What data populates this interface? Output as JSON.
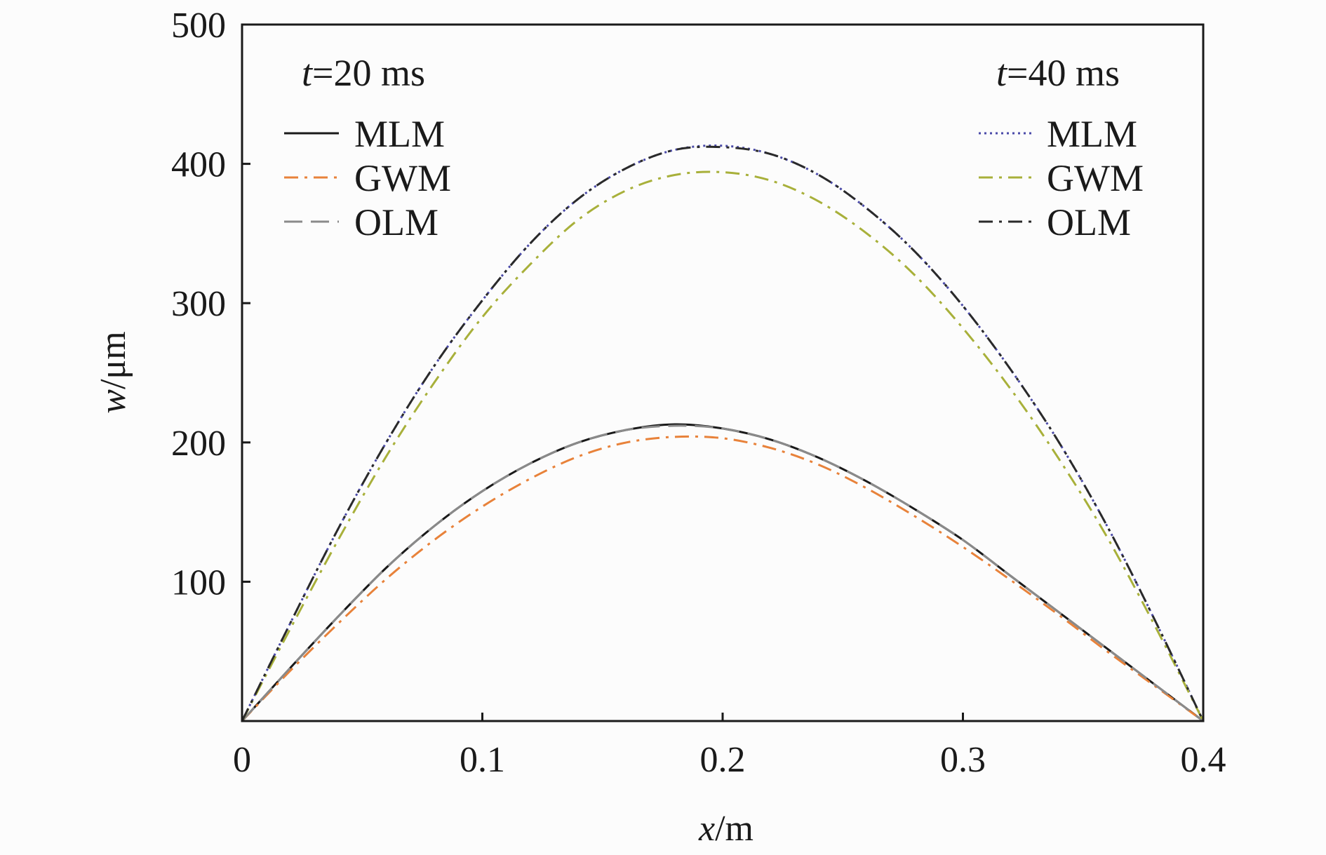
{
  "chart_data": {
    "type": "line",
    "xlabel": {
      "var": "x",
      "unit": "/m"
    },
    "ylabel": {
      "var": "w",
      "unit": "/μm"
    },
    "xlim": [
      0,
      0.4
    ],
    "ylim": [
      0,
      500
    ],
    "xticks": [
      {
        "value": 0,
        "label": "0"
      },
      {
        "value": 0.1,
        "label": "0.1"
      },
      {
        "value": 0.2,
        "label": "0.2"
      },
      {
        "value": 0.3,
        "label": "0.3"
      },
      {
        "value": 0.4,
        "label": "0.4"
      }
    ],
    "yticks": [
      {
        "value": 100,
        "label": "100"
      },
      {
        "value": 200,
        "label": "200"
      },
      {
        "value": 300,
        "label": "300"
      },
      {
        "value": 400,
        "label": "400"
      },
      {
        "value": 500,
        "label": "500"
      }
    ],
    "grid": false,
    "groups": [
      {
        "legend_title_var": "t",
        "legend_title_rest": "=20 ms",
        "legend_placement": "top-left",
        "series": [
          {
            "name": "MLM",
            "color": "#1a1a1a",
            "dash": "solid",
            "x": [
              0,
              0.02,
              0.04,
              0.06,
              0.08,
              0.1,
              0.12,
              0.14,
              0.16,
              0.18,
              0.2,
              0.22,
              0.24,
              0.26,
              0.28,
              0.3,
              0.32,
              0.34,
              0.36,
              0.38,
              0.4
            ],
            "y": [
              0,
              38,
              75,
              110,
              140,
              165,
              185,
              200,
              209,
              213,
              210,
              202,
              189,
              172,
              152,
              130,
              104,
              78,
              52,
              26,
              0
            ]
          },
          {
            "name": "GWM",
            "color": "#e8823a",
            "dash": "dashdot",
            "x": [
              0,
              0.02,
              0.04,
              0.06,
              0.08,
              0.1,
              0.12,
              0.14,
              0.16,
              0.18,
              0.2,
              0.22,
              0.24,
              0.26,
              0.28,
              0.3,
              0.32,
              0.34,
              0.36,
              0.38,
              0.4
            ],
            "y": [
              0,
              36,
              70,
              102,
              130,
              154,
              174,
              190,
              200,
              204,
              203,
              196,
              184,
              167,
              147,
              125,
              101,
              76,
              50,
              25,
              0
            ]
          },
          {
            "name": "OLM",
            "color": "#8a8a8a",
            "dash": "longdash",
            "x": [
              0,
              0.02,
              0.04,
              0.06,
              0.08,
              0.1,
              0.12,
              0.14,
              0.16,
              0.18,
              0.2,
              0.22,
              0.24,
              0.26,
              0.28,
              0.3,
              0.32,
              0.34,
              0.36,
              0.38,
              0.4
            ],
            "y": [
              0,
              38,
              75,
              110,
              140,
              165,
              185,
              200,
              209,
              212,
              210,
              202,
              189,
              172,
              152,
              130,
              104,
              78,
              52,
              26,
              0
            ]
          }
        ]
      },
      {
        "legend_title_var": "t",
        "legend_title_rest": "=40 ms",
        "legend_placement": "top-right",
        "series": [
          {
            "name": "MLM",
            "color": "#4a4aa8",
            "dash": "dotted",
            "x": [
              0,
              0.02,
              0.04,
              0.06,
              0.08,
              0.1,
              0.12,
              0.14,
              0.16,
              0.18,
              0.2,
              0.22,
              0.24,
              0.26,
              0.28,
              0.3,
              0.32,
              0.34,
              0.36,
              0.38,
              0.4
            ],
            "y": [
              0,
              70,
              138,
              200,
              255,
              302,
              343,
              375,
              397,
              410,
              413,
              407,
              392,
              368,
              337,
              298,
              252,
              200,
              140,
              72,
              0
            ]
          },
          {
            "name": "GWM",
            "color": "#a8b03a",
            "dash": "dashdot",
            "x": [
              0,
              0.02,
              0.04,
              0.06,
              0.08,
              0.1,
              0.12,
              0.14,
              0.16,
              0.18,
              0.2,
              0.22,
              0.24,
              0.26,
              0.28,
              0.3,
              0.32,
              0.34,
              0.36,
              0.38,
              0.4
            ],
            "y": [
              0,
              66,
              130,
              190,
              243,
              290,
              328,
              360,
              381,
              392,
              394,
              388,
              373,
              350,
              320,
              282,
              238,
              188,
              132,
              68,
              0
            ]
          },
          {
            "name": "OLM",
            "color": "#2a2a2a",
            "dash": "dashdot",
            "x": [
              0,
              0.02,
              0.04,
              0.06,
              0.08,
              0.1,
              0.12,
              0.14,
              0.16,
              0.18,
              0.2,
              0.22,
              0.24,
              0.26,
              0.28,
              0.3,
              0.32,
              0.34,
              0.36,
              0.38,
              0.4
            ],
            "y": [
              0,
              70,
              138,
              200,
              255,
              302,
              343,
              375,
              397,
              410,
              412,
              407,
              392,
              368,
              337,
              298,
              252,
              200,
              140,
              72,
              0
            ]
          }
        ]
      }
    ]
  }
}
